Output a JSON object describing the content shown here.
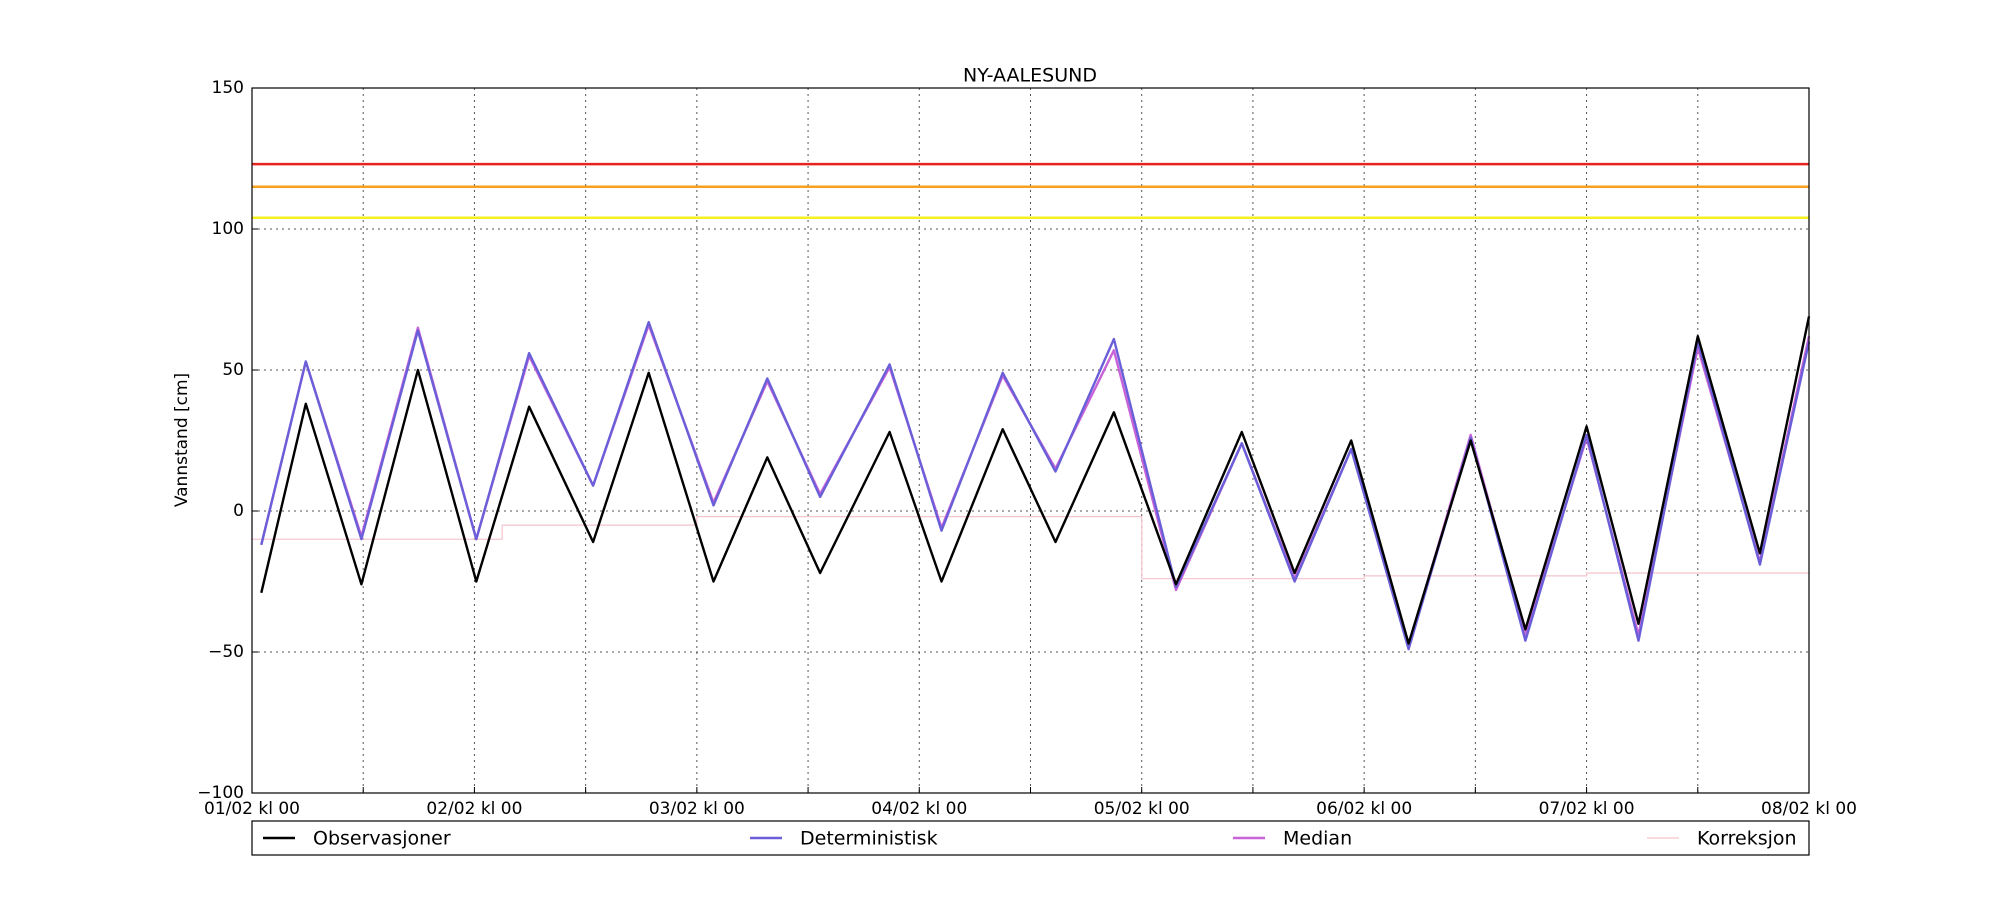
{
  "chart_data": {
    "type": "line",
    "title": "NY-AALESUND",
    "ylabel": "Vannstand [cm]",
    "xlim": [
      0,
      168
    ],
    "ylim": [
      -100,
      150
    ],
    "yticks": [
      {
        "value": -100,
        "label": "−100"
      },
      {
        "value": -50,
        "label": "−50"
      },
      0,
      50,
      100,
      150
    ],
    "xticks": [
      {
        "value": 0,
        "label": "01/02 kl 00"
      },
      {
        "value": 24,
        "label": "02/02 kl 00"
      },
      {
        "value": 48,
        "label": "03/02 kl 00"
      },
      {
        "value": 72,
        "label": "04/02 kl 00"
      },
      {
        "value": 96,
        "label": "05/02 kl 00"
      },
      {
        "value": 120,
        "label": "06/02 kl 00"
      },
      {
        "value": 144,
        "label": "07/02 kl 00"
      },
      {
        "value": 168,
        "label": "08/02 kl 00"
      }
    ],
    "xminor_ticks": [
      12,
      36,
      60,
      84,
      108,
      132,
      156
    ],
    "grid": true,
    "thresholds": [
      {
        "value": 123,
        "color": "#e8231d"
      },
      {
        "value": 115,
        "color": "#f5a020"
      },
      {
        "value": 104,
        "color": "#f5f020"
      }
    ],
    "series": [
      {
        "name": "Observasjoner",
        "color": "#000000",
        "x": [
          1,
          5.8,
          11.8,
          17.9,
          24.2,
          29.9,
          36.8,
          42.8,
          49.8,
          55.6,
          61.3,
          68.8,
          74.4,
          81,
          86.7,
          93,
          99.7,
          106.8,
          112.5,
          118.6,
          124.8,
          131.5,
          137.4,
          144,
          149.6,
          156,
          162.7,
          168
        ],
        "values": [
          -29,
          38,
          -26,
          50,
          -25,
          37,
          -11,
          49,
          -25,
          19,
          -22,
          28,
          -25,
          29,
          -11,
          35,
          -26,
          28,
          -22,
          25,
          -47,
          25,
          -42,
          30,
          -40,
          62,
          -15,
          69
        ]
      },
      {
        "name": "Deterministisk",
        "color": "#6a5fd8",
        "x": [
          1,
          5.8,
          11.8,
          17.9,
          24.2,
          29.9,
          36.8,
          42.8,
          49.8,
          55.6,
          61.3,
          68.8,
          74.4,
          81,
          86.7,
          93,
          99.7,
          106.8,
          112.5,
          118.6,
          124.8,
          131.5,
          137.4,
          144,
          149.6,
          156,
          162.7,
          168
        ],
        "values": [
          -12,
          53,
          -10,
          64,
          -10,
          56,
          9,
          67,
          2,
          47,
          5,
          52,
          -7,
          49,
          14,
          61,
          -27,
          24,
          -25,
          22,
          -49,
          26,
          -46,
          27,
          -46,
          60,
          -19,
          60
        ]
      },
      {
        "name": "Median",
        "color": "#c863d8",
        "x": [
          1,
          5.8,
          11.8,
          17.9,
          24.2,
          29.9,
          36.8,
          42.8,
          49.8,
          55.6,
          61.3,
          68.8,
          74.4,
          81,
          86.7,
          93,
          99.7,
          106.8,
          112.5,
          118.6,
          124.8,
          131.5,
          137.4,
          144,
          149.6,
          156,
          162.7,
          168
        ],
        "values": [
          -12,
          53,
          -9,
          65,
          -10,
          55,
          9,
          66,
          3,
          46,
          6,
          51,
          -6,
          48,
          15,
          57,
          -28,
          24,
          -24,
          22,
          -48,
          27,
          -44,
          26,
          -44,
          58,
          -18,
          62
        ]
      },
      {
        "name": "Korreksjon",
        "color": "#f4c4cc",
        "x": [
          0,
          27,
          27,
          48,
          48,
          96,
          96,
          120,
          120,
          144,
          144,
          168
        ],
        "values": [
          -10,
          -10,
          -5,
          -5,
          -2,
          -2,
          -24,
          -24,
          -23,
          -23,
          -22,
          -22
        ]
      }
    ]
  }
}
